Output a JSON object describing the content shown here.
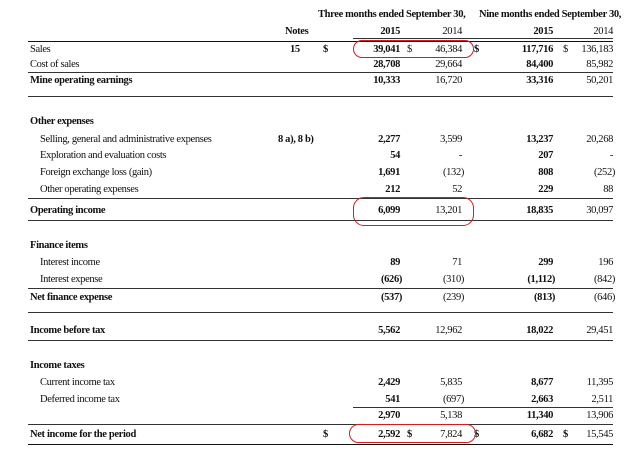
{
  "header": {
    "three_months": "Three months ended September 30,",
    "nine_months": "Nine months ended September 30,",
    "notes": "Notes",
    "years": [
      "2015",
      "2014",
      "2015",
      "2014"
    ]
  },
  "rows": {
    "sales": {
      "label": "Sales",
      "note": "15",
      "cur": "$",
      "q15": "39,041",
      "q15_cur": "$",
      "q14": "46,384",
      "q14_cur": "$",
      "n15": "117,716",
      "n15_cur": "$",
      "n14": "136,183"
    },
    "cost_of_sales": {
      "label": "Cost of sales",
      "q15": "28,708",
      "q14": "29,664",
      "n15": "84,400",
      "n14": "85,982"
    },
    "mine_operating": {
      "label": "Mine operating earnings",
      "q15": "10,333",
      "q14": "16,720",
      "n15": "33,316",
      "n14": "50,201"
    },
    "other_expenses": {
      "label": "Other expenses"
    },
    "sga": {
      "label": "Selling, general and administrative expenses",
      "note": "8 a), 8 b)",
      "q15": "2,277",
      "q14": "3,599",
      "n15": "13,237",
      "n14": "20,268"
    },
    "exploration": {
      "label": "Exploration and evaluation costs",
      "q15": "54",
      "q14": "-",
      "n15": "207",
      "n14": "-"
    },
    "fx": {
      "label": "Foreign exchange loss (gain)",
      "q15": "1,691",
      "q14": "(132)",
      "n15": "808",
      "n14": "(252)"
    },
    "other_op": {
      "label": "Other operating expenses",
      "q15": "212",
      "q14": "52",
      "n15": "229",
      "n14": "88"
    },
    "operating_income": {
      "label": "Operating income",
      "q15": "6,099",
      "q14": "13,201",
      "n15": "18,835",
      "n14": "30,097"
    },
    "finance_items": {
      "label": "Finance items"
    },
    "interest_income": {
      "label": "Interest income",
      "q15": "89",
      "q14": "71",
      "n15": "299",
      "n14": "196"
    },
    "interest_expense": {
      "label": "Interest expense",
      "q15": "(626)",
      "q14": "(310)",
      "n15": "(1,112)",
      "n14": "(842)"
    },
    "net_finance": {
      "label": "Net finance expense",
      "q15": "(537)",
      "q14": "(239)",
      "n15": "(813)",
      "n14": "(646)"
    },
    "income_before_tax": {
      "label": "Income before tax",
      "q15": "5,562",
      "q14": "12,962",
      "n15": "18,022",
      "n14": "29,451"
    },
    "income_taxes": {
      "label": "Income taxes"
    },
    "current_tax": {
      "label": "Current income tax",
      "q15": "2,429",
      "q14": "5,835",
      "n15": "8,677",
      "n14": "11,395"
    },
    "deferred_tax": {
      "label": "Deferred income tax",
      "q15": "541",
      "q14": "(697)",
      "n15": "2,663",
      "n14": "2,511"
    },
    "tax_total": {
      "q15": "2,970",
      "q14": "5,138",
      "n15": "11,340",
      "n14": "13,906"
    },
    "net_income": {
      "label": "Net income for the period",
      "cur": "$",
      "q15": "2,592",
      "q15_cur": "$",
      "q14": "7,824",
      "q14_cur": "$",
      "n15": "6,682",
      "n15_cur": "$",
      "n14": "15,545"
    }
  },
  "highlight_color": "#d71920"
}
